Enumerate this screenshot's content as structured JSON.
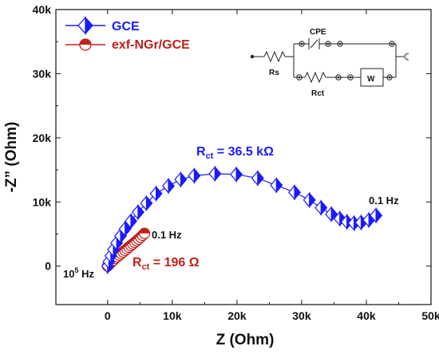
{
  "chart_data": {
    "type": "scatter",
    "xlabel": "Z (Ohm)",
    "ylabel": "-Z” (Ohm)",
    "xlim": [
      -8000,
      50000
    ],
    "ylim": [
      -6000,
      40000
    ],
    "x_ticks": [
      "0",
      "10k",
      "20k",
      "30k",
      "40k",
      "50k"
    ],
    "y_ticks": [
      "0",
      "10k",
      "20k",
      "30k",
      "40k"
    ],
    "legend_position": "top-left",
    "series": [
      {
        "name": "GCE",
        "color": "#1a1aff",
        "marker": "half-filled-diamond",
        "x": [
          0,
          200,
          500,
          900,
          1400,
          2000,
          2700,
          3600,
          4700,
          6000,
          7500,
          9400,
          11300,
          13400,
          16600,
          19900,
          23200,
          26100,
          28900,
          31200,
          33000,
          34600,
          35900,
          37000,
          38100,
          39200,
          40400,
          41500
        ],
        "y": [
          0,
          700,
          1600,
          2600,
          3600,
          4700,
          5800,
          7000,
          8400,
          9800,
          11300,
          12500,
          13500,
          14100,
          14400,
          14300,
          13700,
          12600,
          11500,
          10300,
          9100,
          8100,
          7400,
          6900,
          6700,
          6800,
          7200,
          7900
        ]
      },
      {
        "name": "exf-NGr/GCE",
        "color": "#c0201a",
        "marker": "half-filled-circle",
        "x": [
          0,
          300,
          600,
          900,
          1200,
          1500,
          1800,
          2100,
          2400,
          2700,
          3000,
          3300,
          3600,
          3900,
          4200,
          4500,
          4800,
          5100,
          5400,
          5700
        ],
        "y": [
          0,
          300,
          600,
          900,
          1200,
          1450,
          1700,
          1950,
          2200,
          2450,
          2700,
          2950,
          3200,
          3450,
          3700,
          3950,
          4200,
          4500,
          4800,
          5100
        ]
      }
    ],
    "annotations": {
      "gce_rct_main": "R",
      "gce_rct_sub": "ct",
      "gce_rct_value": " = 36.5 kΩ",
      "ngr_rct_main": "R",
      "ngr_rct_sub": "ct",
      "ngr_rct_value": " = 196 Ω",
      "gce_freq_low": "0.1 Hz",
      "ngr_freq_low": "0.1 Hz",
      "freq_high_base": "10",
      "freq_high_exp": "5",
      "freq_high_unit": " Hz"
    },
    "circuit": {
      "cpe_label": "CPE",
      "rs_label": "Rs",
      "rct_label": "Rct",
      "w_label": "W"
    }
  }
}
